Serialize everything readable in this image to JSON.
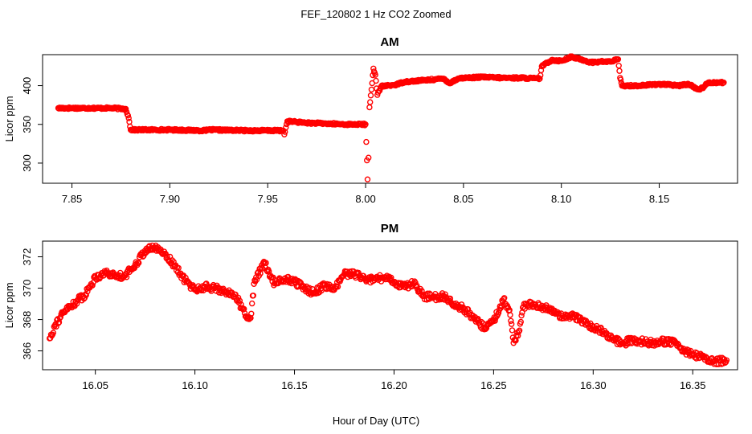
{
  "title": "FEF_120802  1 Hz CO2 Zoomed",
  "xlabel": "Hour of Day (UTC)",
  "colors": {
    "points": "#ff0000",
    "axes": "#000000",
    "background": "#ffffff"
  },
  "chart_data": [
    {
      "type": "scatter",
      "title": "AM",
      "xlabel": "",
      "ylabel": "Licor ppm",
      "xlim": [
        7.835,
        8.19
      ],
      "ylim": [
        274,
        440
      ],
      "xticks": [
        "7.85",
        "7.90",
        "7.95",
        "8.00",
        "8.05",
        "8.10",
        "8.15"
      ],
      "yticks": [
        "300",
        "350",
        "400"
      ],
      "marker": "open-circle",
      "series": [
        {
          "x": [
            7.843,
            7.85,
            7.86,
            7.87,
            7.8775,
            7.879,
            7.88,
            7.885,
            7.9,
            7.918,
            7.92,
            7.94,
            7.958,
            7.9585,
            7.96,
            7.97,
            7.98,
            7.99,
            8.0,
            8.001,
            8.0015,
            8.002,
            8.003,
            8.004,
            8.005,
            8.006,
            8.008,
            8.015,
            8.02,
            8.03,
            8.04,
            8.043,
            8.047,
            8.05,
            8.06,
            8.07,
            8.08,
            8.089,
            8.09,
            8.095,
            8.1,
            8.105,
            8.11,
            8.115,
            8.12,
            8.125,
            8.129,
            8.13,
            8.131,
            8.14,
            8.15,
            8.16,
            8.165,
            8.17,
            8.172,
            8.175,
            8.183
          ],
          "y": [
            371,
            371,
            371,
            371,
            370,
            358,
            343,
            343,
            343,
            342,
            343,
            342,
            342,
            337,
            354,
            352,
            351,
            350,
            350,
            279,
            307,
            372,
            395,
            422,
            414,
            388,
            399,
            401,
            405,
            407,
            409,
            403,
            409,
            410,
            411,
            410,
            410,
            409,
            425,
            433,
            432,
            437,
            434,
            430,
            431,
            431,
            434,
            410,
            400,
            400,
            402,
            400,
            402,
            395,
            397,
            404,
            404
          ]
        }
      ]
    },
    {
      "type": "scatter",
      "title": "PM",
      "xlabel": "Hour of Day (UTC)",
      "ylabel": "Licor ppm",
      "xlim": [
        16.0235,
        16.3725
      ],
      "ylim": [
        364.8,
        373.0
      ],
      "xticks": [
        "16.05",
        "16.10",
        "16.15",
        "16.20",
        "16.25",
        "16.30",
        "16.35"
      ],
      "yticks": [
        "366",
        "368",
        "370",
        "372"
      ],
      "marker": "open-circle",
      "series": [
        {
          "x": [
            16.027,
            16.03,
            16.035,
            16.04,
            16.045,
            16.05,
            16.055,
            16.06,
            16.065,
            16.07,
            16.075,
            16.08,
            16.085,
            16.09,
            16.095,
            16.1,
            16.105,
            16.11,
            16.115,
            16.12,
            16.125,
            16.128,
            16.13,
            16.135,
            16.14,
            16.145,
            16.15,
            16.155,
            16.16,
            16.165,
            16.17,
            16.175,
            16.18,
            16.185,
            16.19,
            16.195,
            16.2,
            16.205,
            16.21,
            16.215,
            16.22,
            16.225,
            16.23,
            16.235,
            16.24,
            16.245,
            16.25,
            16.255,
            16.258,
            16.26,
            16.263,
            16.265,
            16.27,
            16.275,
            16.28,
            16.285,
            16.29,
            16.295,
            16.3,
            16.305,
            16.31,
            16.315,
            16.32,
            16.325,
            16.33,
            16.335,
            16.34,
            16.345,
            16.35,
            16.355,
            16.36,
            16.367
          ],
          "y": [
            366.8,
            367.7,
            368.6,
            369.1,
            369.6,
            370.7,
            371.0,
            370.8,
            370.8,
            371.5,
            372.4,
            372.6,
            372.2,
            371.4,
            370.5,
            369.9,
            370.1,
            370.0,
            369.8,
            369.6,
            368.4,
            368.1,
            370.5,
            371.6,
            370.3,
            370.6,
            370.4,
            370.0,
            369.7,
            370.2,
            369.9,
            370.9,
            370.9,
            370.6,
            370.5,
            370.7,
            370.4,
            370.1,
            370.3,
            369.5,
            369.4,
            369.5,
            369.0,
            368.7,
            368.1,
            367.5,
            367.9,
            369.3,
            368.6,
            366.5,
            367.3,
            368.8,
            369.0,
            368.8,
            368.6,
            368.1,
            368.2,
            367.9,
            367.5,
            367.2,
            366.7,
            366.5,
            366.7,
            366.6,
            366.5,
            366.6,
            366.6,
            366.0,
            365.8,
            365.6,
            365.3,
            365.4
          ]
        }
      ]
    }
  ]
}
